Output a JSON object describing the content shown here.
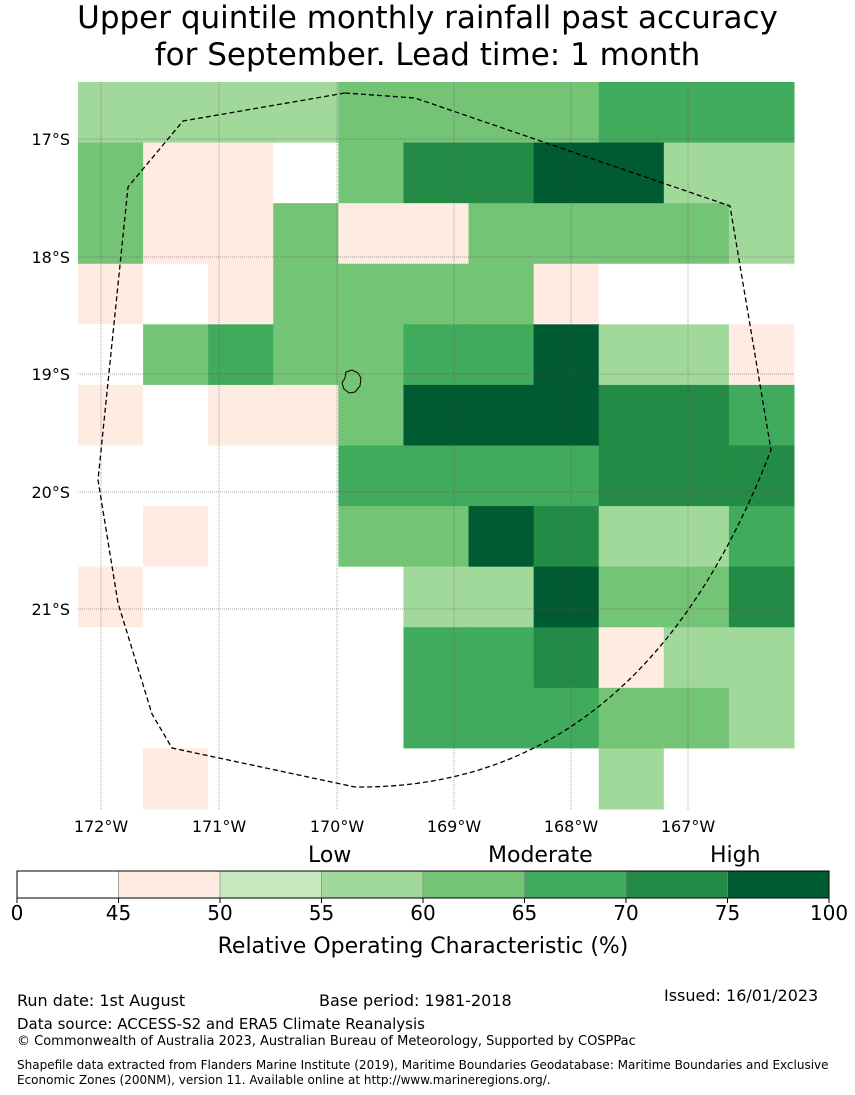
{
  "title": {
    "line1": "Upper quintile monthly rainfall past accuracy",
    "line2": "for September. Lead time: 1 month"
  },
  "map": {
    "lon_labels": [
      "172°W",
      "171°W",
      "170°W",
      "169°W",
      "168°W",
      "167°W"
    ],
    "lat_labels": [
      "17°S",
      "18°S",
      "19°S",
      "20°S",
      "21°S"
    ],
    "grid_cols": 11,
    "grid_rows": 12,
    "roc_category_grid": [
      [
        3,
        3,
        3,
        3,
        4,
        4,
        4,
        4,
        5,
        5,
        5
      ],
      [
        4,
        1,
        1,
        0,
        4,
        6,
        6,
        7,
        7,
        3,
        3
      ],
      [
        4,
        1,
        1,
        4,
        1,
        1,
        4,
        4,
        4,
        4,
        3
      ],
      [
        1,
        0,
        1,
        4,
        4,
        4,
        4,
        1,
        0,
        0,
        0
      ],
      [
        0,
        4,
        5,
        4,
        4,
        5,
        5,
        7,
        3,
        3,
        1
      ],
      [
        1,
        0,
        1,
        1,
        4,
        7,
        7,
        7,
        6,
        6,
        5
      ],
      [
        0,
        0,
        0,
        0,
        5,
        5,
        5,
        5,
        6,
        6,
        6
      ],
      [
        0,
        1,
        0,
        0,
        4,
        4,
        7,
        6,
        3,
        3,
        5
      ],
      [
        1,
        0,
        0,
        0,
        0,
        3,
        3,
        7,
        4,
        4,
        6
      ],
      [
        0,
        0,
        0,
        0,
        0,
        5,
        5,
        6,
        1,
        3,
        3
      ],
      [
        0,
        0,
        0,
        0,
        0,
        5,
        5,
        5,
        4,
        4,
        3
      ],
      [
        0,
        1,
        0,
        0,
        0,
        0,
        0,
        0,
        3,
        0,
        0
      ]
    ]
  },
  "colorbar": {
    "level_labels": [
      "Low",
      "Moderate",
      "High"
    ],
    "ticks": [
      "0",
      "45",
      "50",
      "55",
      "60",
      "65",
      "70",
      "75",
      "100"
    ],
    "colors": [
      "#ffffff",
      "#feebe2",
      "#c7e9c0",
      "#a1d99b",
      "#74c476",
      "#41ab5d",
      "#238b45",
      "#005a32"
    ],
    "label": "Relative Operating Characteristic (%)"
  },
  "footer": {
    "run_date": "Run date: 1st August",
    "base_period": "Base period: 1981-2018",
    "issued": "Issued: 16/01/2023",
    "data_source": "Data source: ACCESS-S2 and ERA5 Climate Reanalysis",
    "copyright": "© Commonwealth of Australia 2023, Australian Bureau of Meteorology, Supported by COSPPac",
    "shapefile_line1": "Shapefile data extracted from Flanders Marine Institute (2019), Maritime Boundaries Geodatabase: Maritime Boundaries and Exclusive",
    "shapefile_line2": "Economic Zones (200NM), version 11. Available online at http://www.marineregions.org/."
  }
}
